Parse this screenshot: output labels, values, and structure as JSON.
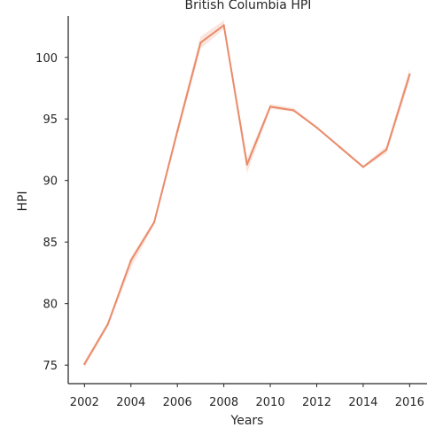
{
  "chart_data": {
    "type": "line",
    "title": "British Columbia HPI",
    "xlabel": "Years",
    "ylabel": "HPI",
    "x_ticks": [
      "2002",
      "2004",
      "2006",
      "2008",
      "2010",
      "2012",
      "2014",
      "2016"
    ],
    "y_ticks": [
      "75",
      "80",
      "85",
      "90",
      "95",
      "100"
    ],
    "xlim": [
      2001.3,
      2016.75
    ],
    "ylim": [
      73.5,
      104.3
    ],
    "grid": false,
    "series": [
      {
        "color": "#ea8b6b",
        "band_color": "#ea8b6b",
        "x": [
          2002,
          2003,
          2004,
          2005,
          2006,
          2007,
          2008,
          2009,
          2010,
          2011,
          2012,
          2013,
          2014,
          2015,
          2016
        ],
        "y": [
          75.1,
          78.3,
          83.5,
          86.6,
          94.0,
          101.2,
          102.6,
          91.3,
          96.0,
          95.7,
          94.3,
          92.7,
          91.1,
          92.5,
          98.6
        ],
        "ci_low": [
          74.8,
          78.1,
          82.9,
          86.4,
          93.6,
          100.7,
          102.3,
          90.6,
          95.8,
          95.6,
          94.2,
          92.6,
          91.0,
          92.2,
          98.1
        ],
        "ci_high": [
          75.3,
          78.5,
          83.8,
          86.8,
          94.4,
          101.7,
          103.0,
          91.8,
          96.2,
          95.9,
          94.4,
          92.8,
          91.2,
          92.8,
          99.1
        ]
      }
    ]
  }
}
